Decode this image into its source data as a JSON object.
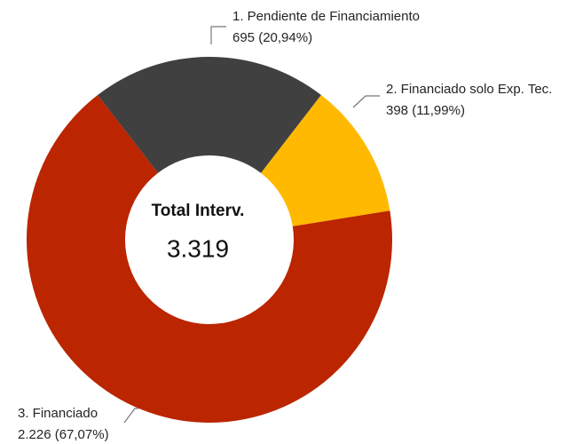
{
  "chart_data": {
    "type": "donut",
    "categories": [
      "1. Pendiente de Financiamiento",
      "2. Financiado solo Exp. Tec.",
      "3. Financiado"
    ],
    "values": [
      695,
      398,
      2226
    ],
    "value_labels": [
      "695 (20,94%)",
      "398 (11,99%)",
      "2.226 (67,07%)"
    ],
    "colors": [
      "#404040",
      "#ffb900",
      "#bb2500"
    ],
    "center_title": "Total Interv.",
    "total": {
      "value": 3319,
      "label": "3.319"
    }
  }
}
